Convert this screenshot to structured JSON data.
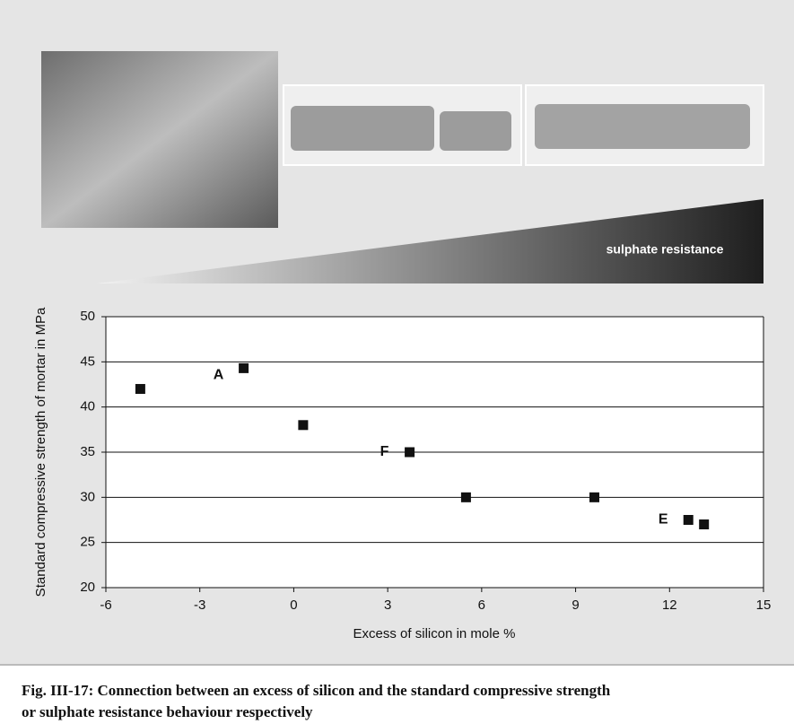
{
  "chart_data": {
    "type": "scatter",
    "banner_label": "sulphate resistance",
    "xlabel": "Excess of silicon in mole %",
    "ylabel": "Standard compressive strength of mortar in MPa",
    "series": [
      {
        "color": "#111111",
        "x": [
          -4.9,
          -1.6,
          0.3,
          3.7,
          5.5,
          9.6,
          12.6,
          13.1
        ],
        "values": [
          42,
          44.3,
          38,
          35,
          30,
          30,
          27.5,
          27
        ],
        "point_labels": [
          null,
          "A",
          null,
          "F",
          null,
          null,
          "E",
          null
        ]
      }
    ],
    "xlim": [
      -6,
      15
    ],
    "xticks": [
      -6,
      -3,
      0,
      3,
      6,
      9,
      12,
      15
    ],
    "ylim": [
      20,
      50
    ],
    "yticks": [
      20,
      25,
      30,
      35,
      40,
      45,
      50
    ],
    "grid": true,
    "caption": [
      "Fig. III-17: Connection between an excess of silicon and the standard compressive strength",
      "or sulphate resistance behaviour respectively"
    ]
  }
}
